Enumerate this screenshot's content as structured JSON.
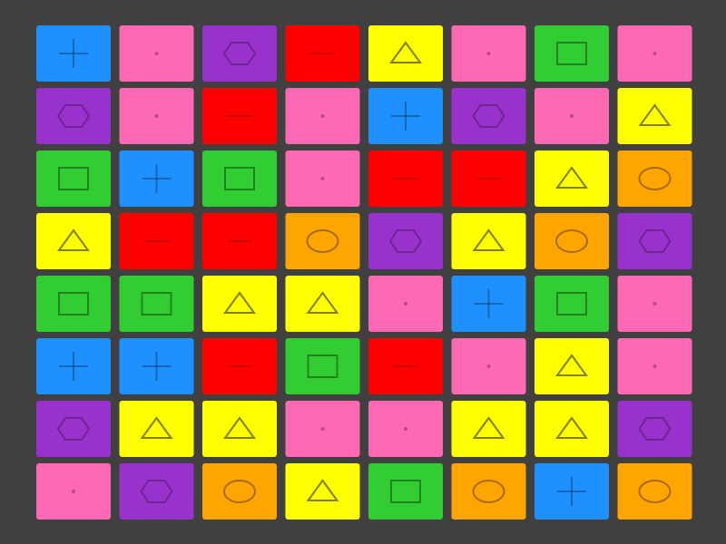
{
  "board": {
    "tile_types": [
      {
        "color": "#1e90ff",
        "shape": "plus"
      },
      {
        "color": "#ff69b4",
        "shape": "dot"
      },
      {
        "color": "#9932cc",
        "shape": "hexagon"
      },
      {
        "color": "#ff0000",
        "shape": "minus"
      },
      {
        "color": "#ffff00",
        "shape": "triangle"
      },
      {
        "color": "#32cd32",
        "shape": "square"
      },
      {
        "color": "#ffa500",
        "shape": "circle"
      }
    ],
    "rows": [
      [
        0,
        1,
        2,
        3,
        4,
        1,
        5,
        1
      ],
      [
        2,
        1,
        3,
        1,
        0,
        2,
        1,
        4
      ],
      [
        5,
        0,
        5,
        1,
        3,
        3,
        4,
        6
      ],
      [
        4,
        3,
        3,
        6,
        2,
        4,
        6,
        2
      ],
      [
        5,
        5,
        4,
        4,
        1,
        0,
        5,
        1
      ],
      [
        0,
        0,
        3,
        5,
        3,
        1,
        4,
        1
      ],
      [
        2,
        4,
        4,
        1,
        1,
        4,
        4,
        2
      ],
      [
        1,
        2,
        6,
        4,
        5,
        6,
        0,
        6
      ]
    ]
  }
}
